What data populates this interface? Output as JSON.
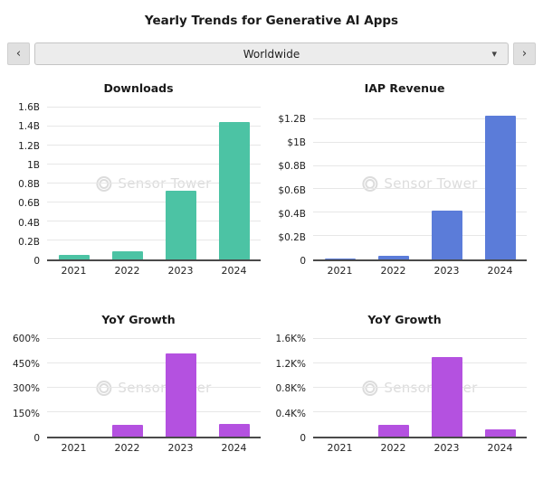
{
  "page": {
    "title": "Yearly Trends for Generative AI Apps"
  },
  "selector": {
    "value": "Worldwide",
    "prev_icon": "‹",
    "next_icon": "›",
    "chevron_icon": "▾"
  },
  "watermark": {
    "text": "Sensor Tower"
  },
  "colors": {
    "downloads_bar": "#4cc3a4",
    "revenue_bar": "#5b7cd9",
    "growth_bar": "#b451e0",
    "axis_line": "#4a4a4a",
    "gridline": "#e7e7e7"
  },
  "chart_data": [
    {
      "type": "bar",
      "title": "Downloads",
      "categories": [
        "2021",
        "2022",
        "2023",
        "2024"
      ],
      "values": [
        0.05,
        0.09,
        0.72,
        1.45
      ],
      "ylim": [
        0,
        1.6
      ],
      "ticks": [
        {
          "value": 0,
          "label": "0"
        },
        {
          "value": 0.2,
          "label": "0.2B"
        },
        {
          "value": 0.4,
          "label": "0.4B"
        },
        {
          "value": 0.6,
          "label": "0.6B"
        },
        {
          "value": 0.8,
          "label": "0.8B"
        },
        {
          "value": 1.0,
          "label": "1B"
        },
        {
          "value": 1.2,
          "label": "1.2B"
        },
        {
          "value": 1.4,
          "label": "1.4B"
        },
        {
          "value": 1.6,
          "label": "1.6B"
        }
      ],
      "grid": true,
      "legend": false,
      "color": "#4cc3a4"
    },
    {
      "type": "bar",
      "title": "IAP Revenue",
      "categories": [
        "2021",
        "2022",
        "2023",
        "2024"
      ],
      "values": [
        0.01,
        0.03,
        0.42,
        1.23
      ],
      "ylim": [
        0,
        1.3
      ],
      "ticks": [
        {
          "value": 0,
          "label": "0"
        },
        {
          "value": 0.2,
          "label": "$0.2B"
        },
        {
          "value": 0.4,
          "label": "$0.4B"
        },
        {
          "value": 0.6,
          "label": "$0.6B"
        },
        {
          "value": 0.8,
          "label": "$0.8B"
        },
        {
          "value": 1.0,
          "label": "$1B"
        },
        {
          "value": 1.2,
          "label": "$1.2B"
        }
      ],
      "grid": true,
      "legend": false,
      "color": "#5b7cd9"
    },
    {
      "type": "bar",
      "title": "YoY Growth",
      "categories": [
        "2021",
        "2022",
        "2023",
        "2024"
      ],
      "values": [
        0,
        70,
        510,
        80
      ],
      "ylim": [
        0,
        600
      ],
      "ticks": [
        {
          "value": 0,
          "label": "0"
        },
        {
          "value": 150,
          "label": "150%"
        },
        {
          "value": 300,
          "label": "300%"
        },
        {
          "value": 450,
          "label": "450%"
        },
        {
          "value": 600,
          "label": "600%"
        }
      ],
      "grid": true,
      "legend": false,
      "color": "#b451e0"
    },
    {
      "type": "bar",
      "title": "YoY Growth",
      "categories": [
        "2021",
        "2022",
        "2023",
        "2024"
      ],
      "values": [
        0,
        190,
        1300,
        120
      ],
      "ylim": [
        0,
        1600
      ],
      "ticks": [
        {
          "value": 0,
          "label": "0"
        },
        {
          "value": 400,
          "label": "0.4K%"
        },
        {
          "value": 800,
          "label": "0.8K%"
        },
        {
          "value": 1200,
          "label": "1.2K%"
        },
        {
          "value": 1600,
          "label": "1.6K%"
        }
      ],
      "grid": true,
      "legend": false,
      "color": "#b451e0"
    }
  ]
}
